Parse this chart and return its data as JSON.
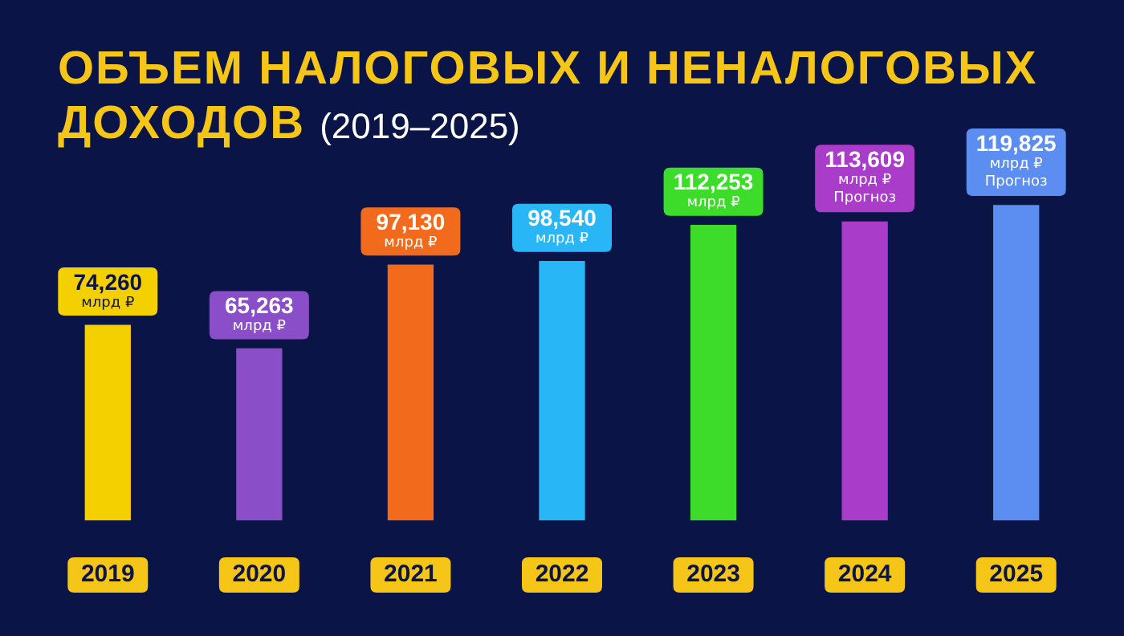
{
  "chart_data": {
    "type": "bar",
    "title": "ОБЪЕМ НАЛОГОВЫХ И НЕНАЛОГОВЫХ ДОХОДОВ",
    "subtitle": "(2019–2025)",
    "categories": [
      "2019",
      "2020",
      "2021",
      "2022",
      "2023",
      "2024",
      "2025"
    ],
    "values": [
      74260,
      65263,
      97130,
      98540,
      112253,
      113609,
      119825
    ],
    "colors": [
      "#f5d000",
      "#8a4fc8",
      "#f26b1d",
      "#29b6f6",
      "#3ddc2a",
      "#a93cc9",
      "#5b8ef0"
    ],
    "value_labels": [
      "74,260\nмлрд ₽",
      "65,263\nмлрд ₽",
      "97,130\nмлрд ₽",
      "98,540\nмлрд ₽",
      "112,253\nмлрд ₽",
      "113,609\nмлрд ₽\nПрогноз",
      "119,825\nмлрд ₽\nПрогноз"
    ],
    "grid": false,
    "legend": false
  }
}
